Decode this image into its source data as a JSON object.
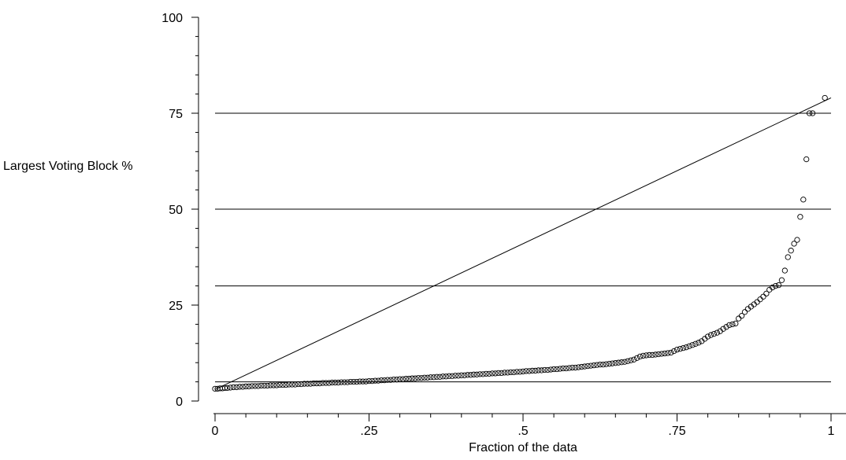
{
  "chart_data": {
    "type": "scatter",
    "title": "",
    "xlabel": "Fraction of the data",
    "ylabel": "Largest Voting Block %",
    "xlim": [
      0,
      1
    ],
    "ylim": [
      0,
      100
    ],
    "grid": false,
    "legend": "none",
    "x_major_ticks": [
      0,
      0.25,
      0.5,
      0.75,
      1
    ],
    "x_tick_labels": [
      "0",
      ".25",
      ".5",
      ".75",
      "1"
    ],
    "y_major_ticks": [
      0,
      25,
      50,
      75,
      100
    ],
    "y_tick_labels": [
      "0",
      "25",
      "50",
      "75",
      "100"
    ],
    "reference_lines": [
      {
        "type": "horizontal",
        "y": 5
      },
      {
        "type": "horizontal",
        "y": 30
      },
      {
        "type": "horizontal",
        "y": 50
      },
      {
        "type": "horizontal",
        "y": 75
      },
      {
        "type": "diagonal",
        "x": [
          0,
          1
        ],
        "y": [
          3,
          79
        ]
      }
    ],
    "series": [
      {
        "marker": "hollow-circle",
        "points": [
          [
            0.0,
            3.2
          ],
          [
            0.004,
            3.2
          ],
          [
            0.008,
            3.3
          ],
          [
            0.012,
            3.3
          ],
          [
            0.016,
            3.4
          ],
          [
            0.02,
            3.4
          ],
          [
            0.025,
            3.5
          ],
          [
            0.03,
            3.6
          ],
          [
            0.035,
            3.6
          ],
          [
            0.04,
            3.7
          ],
          [
            0.045,
            3.7
          ],
          [
            0.05,
            3.8
          ],
          [
            0.055,
            3.8
          ],
          [
            0.06,
            3.9
          ],
          [
            0.065,
            3.9
          ],
          [
            0.07,
            3.9
          ],
          [
            0.075,
            4.0
          ],
          [
            0.08,
            4.0
          ],
          [
            0.085,
            4.0
          ],
          [
            0.09,
            4.1
          ],
          [
            0.095,
            4.1
          ],
          [
            0.1,
            4.1
          ],
          [
            0.105,
            4.2
          ],
          [
            0.11,
            4.2
          ],
          [
            0.115,
            4.2
          ],
          [
            0.12,
            4.3
          ],
          [
            0.125,
            4.3
          ],
          [
            0.13,
            4.3
          ],
          [
            0.135,
            4.4
          ],
          [
            0.14,
            4.4
          ],
          [
            0.145,
            4.5
          ],
          [
            0.15,
            4.5
          ],
          [
            0.155,
            4.5
          ],
          [
            0.16,
            4.6
          ],
          [
            0.165,
            4.6
          ],
          [
            0.17,
            4.6
          ],
          [
            0.175,
            4.7
          ],
          [
            0.18,
            4.7
          ],
          [
            0.185,
            4.7
          ],
          [
            0.19,
            4.8
          ],
          [
            0.195,
            4.8
          ],
          [
            0.2,
            4.8
          ],
          [
            0.205,
            4.9
          ],
          [
            0.21,
            4.9
          ],
          [
            0.215,
            4.9
          ],
          [
            0.22,
            5.0
          ],
          [
            0.225,
            5.0
          ],
          [
            0.23,
            5.0
          ],
          [
            0.235,
            5.1
          ],
          [
            0.24,
            5.1
          ],
          [
            0.245,
            5.1
          ],
          [
            0.25,
            5.2
          ],
          [
            0.255,
            5.2
          ],
          [
            0.26,
            5.3
          ],
          [
            0.265,
            5.3
          ],
          [
            0.27,
            5.4
          ],
          [
            0.275,
            5.4
          ],
          [
            0.28,
            5.5
          ],
          [
            0.285,
            5.5
          ],
          [
            0.29,
            5.6
          ],
          [
            0.295,
            5.6
          ],
          [
            0.3,
            5.7
          ],
          [
            0.305,
            5.7
          ],
          [
            0.31,
            5.8
          ],
          [
            0.315,
            5.8
          ],
          [
            0.32,
            5.9
          ],
          [
            0.325,
            5.9
          ],
          [
            0.33,
            6.0
          ],
          [
            0.335,
            6.0
          ],
          [
            0.34,
            6.1
          ],
          [
            0.345,
            6.1
          ],
          [
            0.35,
            6.2
          ],
          [
            0.355,
            6.2
          ],
          [
            0.36,
            6.3
          ],
          [
            0.365,
            6.3
          ],
          [
            0.37,
            6.4
          ],
          [
            0.375,
            6.4
          ],
          [
            0.38,
            6.5
          ],
          [
            0.385,
            6.5
          ],
          [
            0.39,
            6.6
          ],
          [
            0.395,
            6.6
          ],
          [
            0.4,
            6.7
          ],
          [
            0.405,
            6.7
          ],
          [
            0.41,
            6.8
          ],
          [
            0.415,
            6.8
          ],
          [
            0.42,
            6.9
          ],
          [
            0.425,
            6.9
          ],
          [
            0.43,
            7.0
          ],
          [
            0.435,
            7.0
          ],
          [
            0.44,
            7.1
          ],
          [
            0.445,
            7.1
          ],
          [
            0.45,
            7.2
          ],
          [
            0.455,
            7.2
          ],
          [
            0.46,
            7.3
          ],
          [
            0.465,
            7.3
          ],
          [
            0.47,
            7.4
          ],
          [
            0.475,
            7.4
          ],
          [
            0.48,
            7.5
          ],
          [
            0.485,
            7.5
          ],
          [
            0.49,
            7.6
          ],
          [
            0.495,
            7.6
          ],
          [
            0.5,
            7.7
          ],
          [
            0.505,
            7.8
          ],
          [
            0.51,
            7.8
          ],
          [
            0.515,
            7.9
          ],
          [
            0.52,
            7.9
          ],
          [
            0.525,
            8.0
          ],
          [
            0.53,
            8.0
          ],
          [
            0.535,
            8.1
          ],
          [
            0.54,
            8.1
          ],
          [
            0.545,
            8.2
          ],
          [
            0.55,
            8.3
          ],
          [
            0.555,
            8.3
          ],
          [
            0.56,
            8.4
          ],
          [
            0.565,
            8.5
          ],
          [
            0.57,
            8.5
          ],
          [
            0.575,
            8.6
          ],
          [
            0.58,
            8.7
          ],
          [
            0.585,
            8.7
          ],
          [
            0.59,
            8.8
          ],
          [
            0.595,
            8.9
          ],
          [
            0.6,
            9.0
          ],
          [
            0.605,
            9.1
          ],
          [
            0.61,
            9.2
          ],
          [
            0.615,
            9.3
          ],
          [
            0.62,
            9.4
          ],
          [
            0.625,
            9.5
          ],
          [
            0.63,
            9.5
          ],
          [
            0.635,
            9.6
          ],
          [
            0.64,
            9.7
          ],
          [
            0.645,
            9.8
          ],
          [
            0.65,
            9.9
          ],
          [
            0.655,
            10.0
          ],
          [
            0.66,
            10.1
          ],
          [
            0.665,
            10.2
          ],
          [
            0.67,
            10.4
          ],
          [
            0.675,
            10.6
          ],
          [
            0.68,
            10.8
          ],
          [
            0.685,
            11.2
          ],
          [
            0.69,
            11.6
          ],
          [
            0.695,
            11.8
          ],
          [
            0.7,
            11.9
          ],
          [
            0.705,
            12.0
          ],
          [
            0.71,
            12.0
          ],
          [
            0.715,
            12.1
          ],
          [
            0.72,
            12.2
          ],
          [
            0.725,
            12.3
          ],
          [
            0.73,
            12.4
          ],
          [
            0.735,
            12.5
          ],
          [
            0.74,
            12.6
          ],
          [
            0.745,
            13.0
          ],
          [
            0.75,
            13.4
          ],
          [
            0.755,
            13.6
          ],
          [
            0.76,
            13.8
          ],
          [
            0.765,
            14.0
          ],
          [
            0.77,
            14.3
          ],
          [
            0.775,
            14.6
          ],
          [
            0.78,
            14.9
          ],
          [
            0.785,
            15.2
          ],
          [
            0.79,
            15.6
          ],
          [
            0.795,
            16.2
          ],
          [
            0.8,
            16.8
          ],
          [
            0.805,
            17.2
          ],
          [
            0.81,
            17.5
          ],
          [
            0.815,
            17.8
          ],
          [
            0.82,
            18.2
          ],
          [
            0.825,
            18.8
          ],
          [
            0.83,
            19.3
          ],
          [
            0.835,
            19.8
          ],
          [
            0.84,
            20.0
          ],
          [
            0.845,
            20.2
          ],
          [
            0.85,
            21.5
          ],
          [
            0.855,
            22.2
          ],
          [
            0.86,
            23.2
          ],
          [
            0.865,
            24.0
          ],
          [
            0.87,
            24.6
          ],
          [
            0.875,
            25.2
          ],
          [
            0.88,
            25.8
          ],
          [
            0.885,
            26.5
          ],
          [
            0.89,
            27.2
          ],
          [
            0.895,
            28.0
          ],
          [
            0.9,
            29.0
          ],
          [
            0.905,
            29.6
          ],
          [
            0.91,
            30.0
          ],
          [
            0.915,
            30.2
          ],
          [
            0.92,
            31.5
          ],
          [
            0.925,
            34.0
          ],
          [
            0.93,
            37.5
          ],
          [
            0.935,
            39.2
          ],
          [
            0.94,
            41.0
          ],
          [
            0.945,
            42.0
          ],
          [
            0.95,
            48.0
          ],
          [
            0.955,
            52.5
          ],
          [
            0.96,
            63.0
          ],
          [
            0.965,
            75.0
          ],
          [
            0.97,
            75.0
          ],
          [
            0.99,
            79.0
          ]
        ]
      }
    ]
  }
}
